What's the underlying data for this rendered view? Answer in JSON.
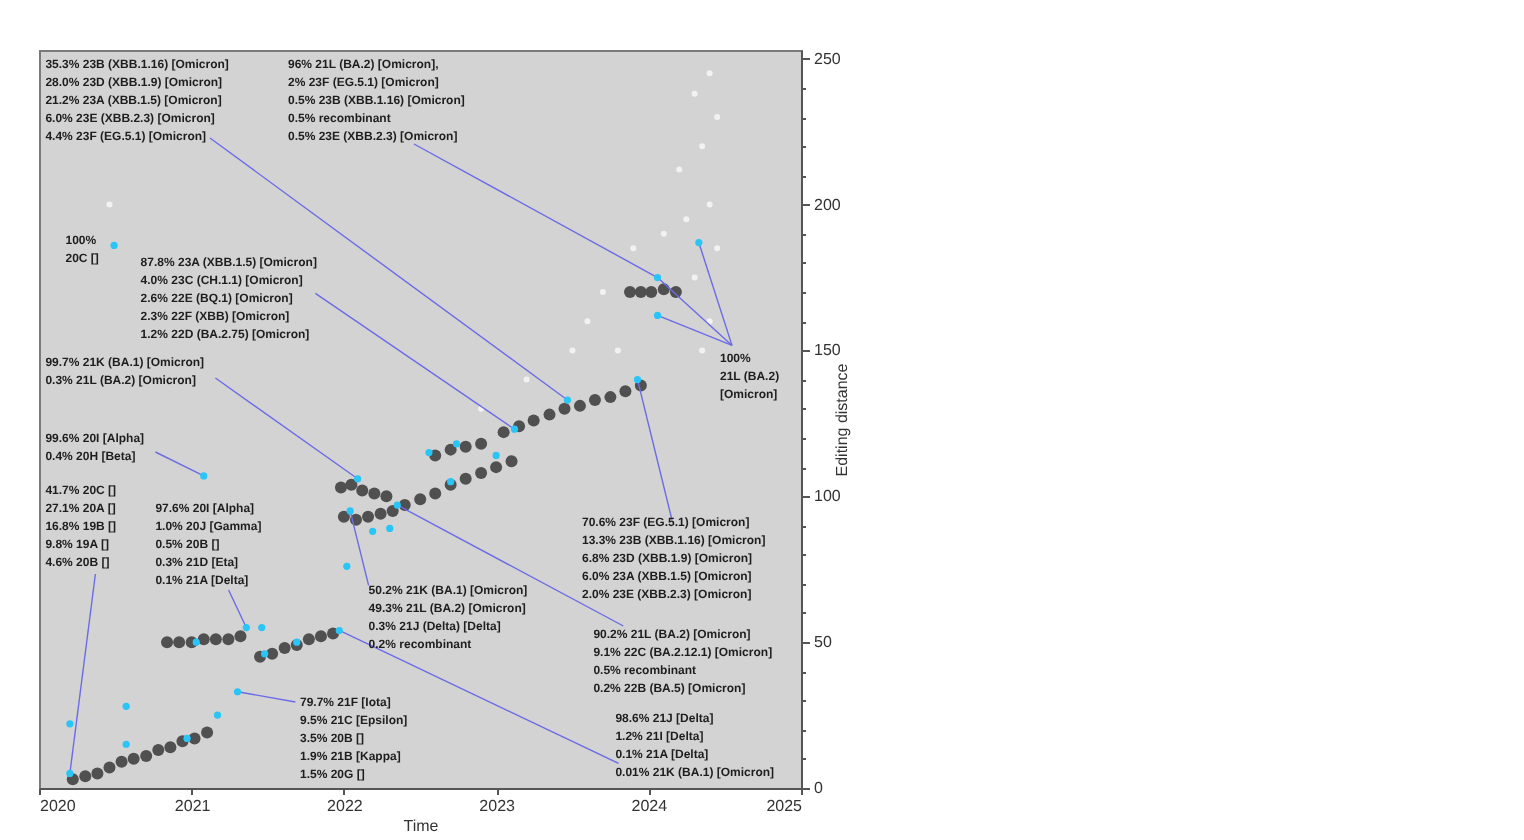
{
  "chart_data": {
    "type": "scatter",
    "xlabel": "Time",
    "ylabel": "Editing distance",
    "xlim": [
      "2020",
      "2025"
    ],
    "xticks": [
      "2020",
      "2021",
      "2022",
      "2023",
      "2024",
      "2025"
    ],
    "ylim": [
      0,
      253
    ],
    "yticks": [
      0,
      {
        "value": 10,
        "label": null
      },
      {
        "value": 20,
        "label": null
      },
      {
        "value": 30,
        "label": null
      },
      {
        "value": 40,
        "label": null
      },
      50,
      {
        "value": 60,
        "label": null
      },
      {
        "value": 70,
        "label": null
      },
      {
        "value": 80,
        "label": null
      },
      {
        "value": 90,
        "label": null
      },
      100,
      {
        "value": 110,
        "label": null
      },
      {
        "value": 120,
        "label": null
      },
      {
        "value": 130,
        "label": null
      },
      {
        "value": 140,
        "label": null
      },
      150,
      {
        "value": 160,
        "label": null
      },
      {
        "value": 170,
        "label": null
      },
      {
        "value": 180,
        "label": null
      },
      {
        "value": 190,
        "label": null
      },
      200,
      {
        "value": 210,
        "label": null
      },
      {
        "value": 220,
        "label": null
      },
      {
        "value": 230,
        "label": null
      },
      {
        "value": 240,
        "label": null
      },
      250
    ],
    "grid": false,
    "marker": "circle",
    "series": [
      {
        "color": "#505050",
        "x": [
          "2020-03-22",
          "2020-04-21",
          "2020-05-20",
          "2020-06-18",
          "2020-07-17",
          "2020-08-15",
          "2020-09-14",
          "2020-10-13",
          "2020-11-11",
          "2020-12-10",
          "2021-01-08",
          "2021-02-07",
          "2020-11-03",
          "2020-12-02",
          "2021-01-01",
          "2021-01-30",
          "2021-02-28",
          "2021-03-30",
          "2021-04-28",
          "2021-06-14",
          "2021-07-13",
          "2021-08-12",
          "2021-09-10",
          "2021-10-09",
          "2021-11-07",
          "2021-12-06",
          "2021-12-25",
          "2022-01-19",
          "2022-02-14",
          "2022-03-15",
          "2022-04-13",
          "2022-01-01",
          "2022-01-30",
          "2022-02-28",
          "2022-03-30",
          "2022-04-28",
          "2022-05-27",
          "2022-07-03",
          "2022-08-08",
          "2022-09-14",
          "2022-10-20",
          "2022-11-26",
          "2023-01-01",
          "2023-02-07",
          "2022-08-08",
          "2022-09-14",
          "2022-10-20",
          "2022-11-26",
          "2023-01-19",
          "2023-02-25",
          "2023-04-01",
          "2023-05-09",
          "2023-06-14",
          "2023-07-21",
          "2023-08-26",
          "2023-10-02",
          "2023-11-07",
          "2023-12-14",
          "2023-11-18",
          "2023-12-14",
          "2024-01-08",
          "2024-02-07",
          "2024-03-07"
        ],
        "values": [
          3,
          4,
          5,
          7,
          9,
          10,
          11,
          13,
          14,
          16,
          17,
          19,
          50,
          50,
          50,
          51,
          51,
          51,
          52,
          45,
          46,
          48,
          49,
          51,
          52,
          53,
          103,
          104,
          102,
          101,
          100,
          93,
          92,
          93,
          94,
          95,
          97,
          99,
          101,
          104,
          106,
          108,
          110,
          112,
          114,
          116,
          117,
          118,
          122,
          124,
          126,
          128,
          130,
          131,
          133,
          134,
          136,
          138,
          170,
          170,
          170,
          171,
          170
        ]
      },
      {
        "color": "#f2f2f2",
        "x": [
          "2024-05-27",
          "2024-04-21",
          "2024-06-14",
          "2024-05-09",
          "2024-03-15",
          "2024-05-27",
          "2024-04-01",
          "2024-06-14",
          "2024-02-07",
          "2023-11-26",
          "2023-09-14",
          "2023-08-08",
          "2023-10-20",
          "2023-07-03",
          "2024-04-21",
          "2024-05-27",
          "2023-03-15",
          "2022-11-26",
          "2024-05-09",
          "2020-06-18"
        ],
        "values": [
          245,
          238,
          230,
          220,
          212,
          200,
          195,
          185,
          190,
          185,
          170,
          160,
          150,
          150,
          175,
          160,
          140,
          130,
          150,
          200
        ]
      },
      {
        "color": "#29c5f6",
        "x": [
          "2020-03-15",
          "2020-03-15",
          "2020-07-28",
          "2020-07-28",
          "2020-12-21",
          "2021-03-04",
          "2021-04-21",
          "2021-01-12",
          "2021-05-12",
          "2021-06-18",
          "2021-06-25",
          "2021-09-10",
          "2021-12-21",
          "2022-01-08",
          "2022-01-16",
          "2022-02-03",
          "2022-03-11",
          "2022-04-21",
          "2022-05-09",
          "2022-07-24",
          "2022-09-28",
          "2022-09-14",
          "2023-01-01",
          "2023-02-14",
          "2023-06-21",
          "2023-12-06",
          "2024-01-23",
          "2024-01-23",
          "2024-05-01",
          "2020-06-29",
          "2021-01-30"
        ],
        "values": [
          5,
          22,
          28,
          15,
          17,
          25,
          33,
          50,
          55,
          55,
          46,
          50,
          54,
          76,
          95,
          106,
          88,
          89,
          97,
          115,
          118,
          105,
          114,
          123,
          133,
          140,
          175,
          162,
          187,
          186,
          107
        ]
      }
    ],
    "annotations": [
      {
        "text": "35.3% 23B (XBB.1.16) [Omicron]\n28.0% 23D (XBB.1.9) [Omicron]\n21.2% 23A (XBB.1.5) [Omicron]\n6.0% 23E (XBB.2.3) [Omicron]\n4.4% 23F (EG.5.1) [Omicron]",
        "x": "2023-06-21",
        "y": 133
      },
      {
        "text": "96% 21L (BA.2) [Omicron],\n2% 23F (EG.5.1) [Omicron]\n0.5% 23B (XBB.1.16) [Omicron]\n0.5% recombinant\n0.5% 23E (XBB.2.3) [Omicron]",
        "x": "2024-01-23",
        "y": 175
      },
      {
        "text": "100%\n20C []",
        "x": "2020-06-29",
        "y": 186
      },
      {
        "text": "87.8% 23A (XBB.1.5) [Omicron]\n4.0% 23C (CH.1.1) [Omicron]\n2.6% 22E (BQ.1) [Omicron]\n2.3% 22F (XBB) [Omicron]\n1.2% 22D (BA.2.75) [Omicron]",
        "x": "2023-02-14",
        "y": 123
      },
      {
        "text": "99.7% 21K (BA.1) [Omicron]\n0.3% 21L (BA.2) [Omicron]",
        "x": "2022-02-03",
        "y": 106
      },
      {
        "text": "99.6% 20I [Alpha]\n0.4% 20H [Beta]",
        "x": "2021-01-30",
        "y": 107
      },
      {
        "text": "41.7% 20C []\n27.1% 20A []\n16.8% 19B []\n9.8% 19A []\n4.6% 20B []",
        "x": "2020-03-15",
        "y": 5
      },
      {
        "text": "97.6% 20I [Alpha]\n1.0% 20J [Gamma]\n0.5% 20B []\n0.3% 21D [Eta]\n0.1% 21A [Delta]",
        "x": "2021-05-12",
        "y": 55
      },
      {
        "text": "50.2% 21K (BA.1) [Omicron]\n49.3% 21L (BA.2) [Omicron]\n0.3% 21J (Delta) [Delta]\n0.2% recombinant",
        "x": "2022-01-16",
        "y": 95
      },
      {
        "text": "79.7% 21F [Iota]\n9.5% 21C [Epsilon]\n3.5% 20B []\n1.9% 21B [Kappa]\n1.5% 20G []",
        "x": "2021-04-21",
        "y": 33
      },
      {
        "text": "98.6% 21J [Delta]\n1.2% 21I [Delta]\n0.1% 21A [Delta]\n0.01% 21K (BA.1) [Omicron]",
        "x": "2021-12-21",
        "y": 54
      },
      {
        "text": "90.2% 21L (BA.2) [Omicron]\n9.1% 22C (BA.2.12.1) [Omicron]\n0.5% recombinant\n0.2% 22B (BA.5) [Omicron]",
        "x": "2022-05-09",
        "y": 97
      },
      {
        "text": "70.6% 23F (EG.5.1) [Omicron]\n13.3% 23B (XBB.1.16) [Omicron]\n6.8% 23D (XBB.1.9) [Omicron]\n6.0% 23A (XBB.1.5) [Omicron]\n2.0% 23E (XBB.2.3) [Omicron]",
        "x": "2023-12-06",
        "y": 140
      },
      {
        "text": "100%\n21L (BA.2)\n[Omicron]",
        "x": "2024-05-01",
        "y": 187
      }
    ]
  }
}
